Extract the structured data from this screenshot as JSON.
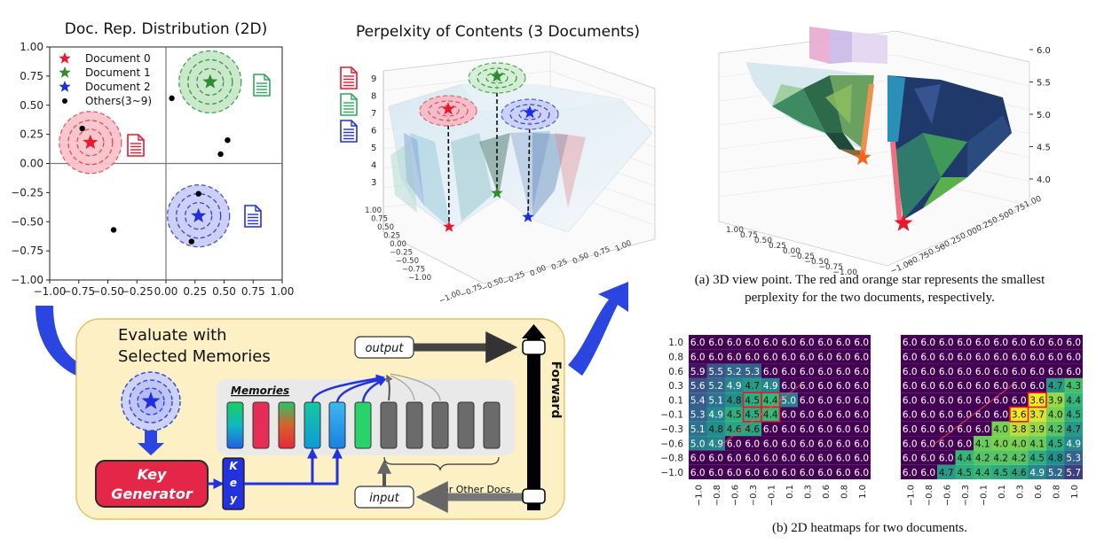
{
  "scatter": {
    "title": "Doc. Rep. Distribution (2D)",
    "xticks": [
      "−1.00",
      "−0.75",
      "−0.50",
      "−0.25",
      "0.00",
      "0.25",
      "0.50",
      "0.75",
      "1.00"
    ],
    "yticks": [
      "1.00",
      "0.75",
      "0.50",
      "0.25",
      "0.00",
      "−0.25",
      "−0.50",
      "−0.75",
      "−1.00"
    ],
    "legend": [
      "Document 0",
      "Document 1",
      "Document 2",
      "Others(3~9)"
    ],
    "colors": {
      "doc0": "#e8192c",
      "doc1": "#2e8b2e",
      "doc2": "#1f2fe0",
      "others": "#000000"
    },
    "points": {
      "doc0": [
        -0.65,
        0.18
      ],
      "doc1": [
        0.38,
        0.7
      ],
      "doc2": [
        0.28,
        -0.45
      ],
      "others": [
        [
          -0.72,
          0.3
        ],
        [
          0.05,
          0.56
        ],
        [
          0.53,
          0.2
        ],
        [
          0.47,
          0.08
        ],
        [
          0.28,
          -0.26
        ],
        [
          0.22,
          -0.67
        ],
        [
          -0.45,
          -0.57
        ]
      ]
    }
  },
  "surface3d": {
    "title": "Perpelxity of Contents (3 Documents)",
    "zticks": [
      "9",
      "8",
      "7",
      "6",
      "5",
      "4",
      "3"
    ],
    "axis_ticks": [
      "1.00",
      "0.75",
      "0.50",
      "0.25",
      "0.00",
      "−0.25",
      "−0.50",
      "−0.75",
      "−1.00"
    ]
  },
  "view3d": {
    "zticks": [
      "6.0",
      "5.5",
      "5.0",
      "4.5",
      "4.0"
    ],
    "axis_ticks": [
      "1.00",
      "0.75",
      "0.50",
      "0.25",
      "0.00",
      "−0.25",
      "−0.50",
      "−0.75",
      "−1.00"
    ],
    "caption": "(a) 3D view point. The red and orange star represents the smallest perplexity for the two documents, respectively."
  },
  "flow": {
    "title_line1": "Evaluate with",
    "title_line2": "Selected Memories",
    "memories_label": "Memories",
    "key_generator": "Key Generator",
    "key": "Key",
    "output": "output",
    "input": "input",
    "forward": "Forward",
    "other_docs": "For Other Docs."
  },
  "heatmaps": {
    "caption": "(b) 2D heatmaps for two documents.",
    "ylabels": [
      "1.0",
      "0.8",
      "0.6",
      "0.3",
      "0.1",
      "−0.1",
      "−0.3",
      "−0.6",
      "−0.8",
      "−1.0"
    ],
    "xlabels": [
      "−1.0",
      "−0.8",
      "−0.6",
      "−0.3",
      "−0.1",
      "0.1",
      "0.3",
      "0.6",
      "0.8",
      "1.0"
    ],
    "left": [
      [
        "6.0",
        "6.0",
        "6.0",
        "6.0",
        "6.0",
        "6.0",
        "6.0",
        "6.0",
        "6.0",
        "6.0"
      ],
      [
        "6.0",
        "6.0",
        "6.0",
        "6.0",
        "6.0",
        "6.0",
        "6.0",
        "6.0",
        "6.0",
        "6.0"
      ],
      [
        "5.9",
        "5.5",
        "5.2",
        "5.3",
        "6.0",
        "6.0",
        "6.0",
        "6.0",
        "6.0",
        "6.0"
      ],
      [
        "5.6",
        "5.2",
        "4.9",
        "4.7",
        "4.9",
        "6.0",
        "6.0",
        "6.0",
        "6.0",
        "6.0"
      ],
      [
        "5.4",
        "5.1",
        "4.8",
        "4.5",
        "4.4",
        "5.0",
        "6.0",
        "6.0",
        "6.0",
        "6.0"
      ],
      [
        "5.3",
        "4.9",
        "4.5",
        "4.5",
        "4.4",
        "6.0",
        "6.0",
        "6.0",
        "6.0",
        "6.0"
      ],
      [
        "5.1",
        "4.8",
        "4.6",
        "4.6",
        "6.0",
        "6.0",
        "6.0",
        "6.0",
        "6.0",
        "6.0"
      ],
      [
        "5.0",
        "4.9",
        "6.0",
        "6.0",
        "6.0",
        "6.0",
        "6.0",
        "6.0",
        "6.0",
        "6.0"
      ],
      [
        "6.0",
        "6.0",
        "6.0",
        "6.0",
        "6.0",
        "6.0",
        "6.0",
        "6.0",
        "6.0",
        "6.0"
      ],
      [
        "6.0",
        "6.0",
        "6.0",
        "6.0",
        "6.0",
        "6.0",
        "6.0",
        "6.0",
        "6.0",
        "6.0"
      ]
    ],
    "right": [
      [
        "6.0",
        "6.0",
        "6.0",
        "6.0",
        "6.0",
        "6.0",
        "6.0",
        "6.0",
        "6.0",
        "6.0"
      ],
      [
        "6.0",
        "6.0",
        "6.0",
        "6.0",
        "6.0",
        "6.0",
        "6.0",
        "6.0",
        "6.0",
        "6.0"
      ],
      [
        "6.0",
        "6.0",
        "6.0",
        "6.0",
        "6.0",
        "6.0",
        "6.0",
        "6.0",
        "6.0",
        "6.0"
      ],
      [
        "6.0",
        "6.0",
        "6.0",
        "6.0",
        "6.0",
        "6.0",
        "6.0",
        "6.0",
        "4.7",
        "4.3"
      ],
      [
        "6.0",
        "6.0",
        "6.0",
        "6.0",
        "6.0",
        "6.0",
        "6.0",
        "3.6",
        "3.9",
        "4.4"
      ],
      [
        "6.0",
        "6.0",
        "6.0",
        "6.0",
        "6.0",
        "6.0",
        "3.6",
        "3.7",
        "4.0",
        "4.5"
      ],
      [
        "6.0",
        "6.0",
        "6.0",
        "6.0",
        "6.0",
        "4.0",
        "3.8",
        "3.9",
        "4.2",
        "4.7"
      ],
      [
        "6.0",
        "6.0",
        "6.0",
        "6.0",
        "4.1",
        "4.0",
        "4.0",
        "4.1",
        "4.5",
        "4.9"
      ],
      [
        "6.0",
        "6.0",
        "6.0",
        "4.4",
        "4.2",
        "4.2",
        "4.2",
        "4.5",
        "4.8",
        "5.3"
      ],
      [
        "6.0",
        "6.0",
        "4.7",
        "4.5",
        "4.4",
        "4.5",
        "4.6",
        "4.9",
        "5.2",
        "5.7"
      ]
    ],
    "left_highlight": [
      [
        4,
        3
      ],
      [
        4,
        4
      ],
      [
        5,
        3
      ],
      [
        5,
        4
      ]
    ],
    "right_highlight": [
      [
        4,
        7
      ],
      [
        5,
        6
      ]
    ]
  }
}
